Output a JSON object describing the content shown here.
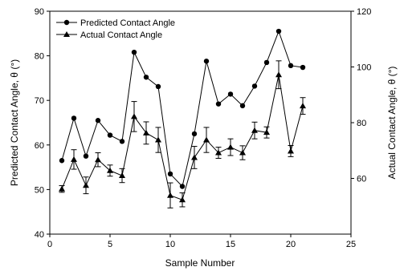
{
  "chart_data": {
    "type": "line",
    "xlabel": "Sample Number",
    "ylabel_left": "Predicted Contact Angle, θ (°)",
    "ylabel_right": "Actual Contact Angle, θ (°)",
    "xlim": [
      0,
      25
    ],
    "ylim_left": [
      40,
      90
    ],
    "ylim_right": [
      40,
      120
    ],
    "x_ticks": [
      0,
      5,
      10,
      15,
      20,
      25
    ],
    "y_ticks_left": [
      40,
      50,
      60,
      70,
      80,
      90
    ],
    "y_ticks_right": [
      60,
      80,
      100,
      120
    ],
    "grid": false,
    "legend_position": "top-left",
    "series": [
      {
        "name": "Predicted Contact Angle",
        "axis": "left",
        "marker": "circle",
        "x": [
          1,
          2,
          3,
          4,
          5,
          6,
          7,
          8,
          9,
          10,
          11,
          12,
          13,
          14,
          15,
          16,
          17,
          18,
          19,
          20,
          21
        ],
        "y": [
          56.5,
          66,
          57.5,
          65.5,
          62.2,
          60.8,
          80.8,
          75.2,
          73.1,
          53.5,
          50.7,
          62.5,
          78.8,
          69.2,
          71.4,
          68.8,
          73.2,
          78.5,
          85.5,
          77.8,
          77.4
        ]
      },
      {
        "name": "Actual Contact Angle",
        "axis": "right",
        "marker": "triangle",
        "x": [
          1,
          2,
          3,
          4,
          5,
          6,
          7,
          8,
          9,
          10,
          11,
          12,
          13,
          14,
          15,
          16,
          17,
          18,
          19,
          20,
          21
        ],
        "y": [
          56.2,
          66.8,
          57.5,
          66.7,
          62.8,
          61,
          82.2,
          76.3,
          73.8,
          53.9,
          52.3,
          67.5,
          73.8,
          69.2,
          71.2,
          69.2,
          77.2,
          76.5,
          97.2,
          69.8,
          86
        ],
        "error": [
          1.2,
          3.5,
          3,
          2.5,
          2,
          2.5,
          5.4,
          4,
          4.5,
          4.5,
          2.5,
          4,
          4.5,
          2,
          3,
          2.5,
          3,
          2,
          5,
          2,
          3
        ]
      }
    ]
  }
}
